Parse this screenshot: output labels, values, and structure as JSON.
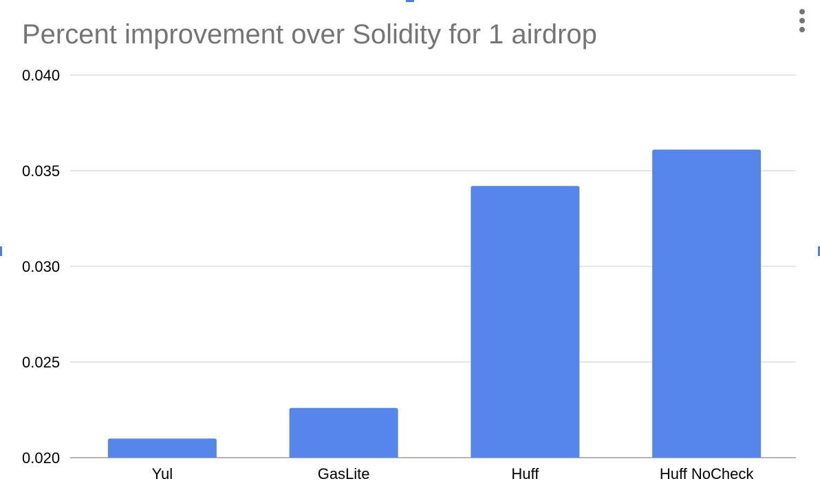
{
  "colors": {
    "bar": "#5686e9",
    "title": "#757575",
    "gridline": "#cccccc",
    "axis": "#9e9e9e",
    "selection_handle": "#4a7fe0"
  },
  "menu": {
    "icon": "more-vert-icon"
  },
  "chart_data": {
    "type": "bar",
    "title": "Percent improvement over Solidity for 1 airdrop",
    "xlabel": "",
    "ylabel": "",
    "categories": [
      "Yul",
      "GasLite",
      "Huff",
      "Huff NoCheck"
    ],
    "values": [
      0.021,
      0.0226,
      0.0342,
      0.0361
    ],
    "ylim": [
      0.02,
      0.04
    ],
    "yticks": [
      "0.020",
      "0.025",
      "0.030",
      "0.035",
      "0.040"
    ],
    "grid": true,
    "legend": "none"
  }
}
